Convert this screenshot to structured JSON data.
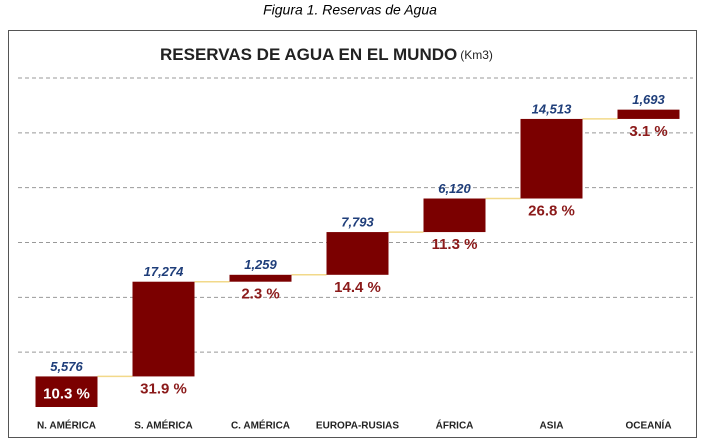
{
  "caption": "Figura 1.  Reservas de Agua",
  "chart_data": {
    "type": "waterfall",
    "title": "RESERVAS DE AGUA EN EL MUNDO",
    "unit": "(Km3)",
    "categories": [
      "N. AMÉRICA",
      "S. AMÉRICA",
      "C. AMÉRICA",
      "EUROPA-RUSIAS",
      "ÁFRICA",
      "ASIA",
      "OCEANÍA"
    ],
    "values": [
      5576,
      17274,
      1259,
      7793,
      6120,
      14513,
      1693
    ],
    "value_labels": [
      "5,576",
      "17,274",
      "1,259",
      "7,793",
      "6,120",
      "14,513",
      "1,693"
    ],
    "percents": [
      10.3,
      31.9,
      2.3,
      14.4,
      11.3,
      26.8,
      3.1
    ],
    "percent_labels": [
      "10.3 %",
      "31.9 %",
      "2.3 %",
      "14.4  %",
      "11.3 %",
      "26.8 %",
      "3.1 %"
    ],
    "color": "#7b0000",
    "ylim": [
      0,
      60000
    ],
    "yticks": [
      10000,
      20000,
      30000,
      40000,
      50000,
      60000
    ],
    "grid": true
  }
}
